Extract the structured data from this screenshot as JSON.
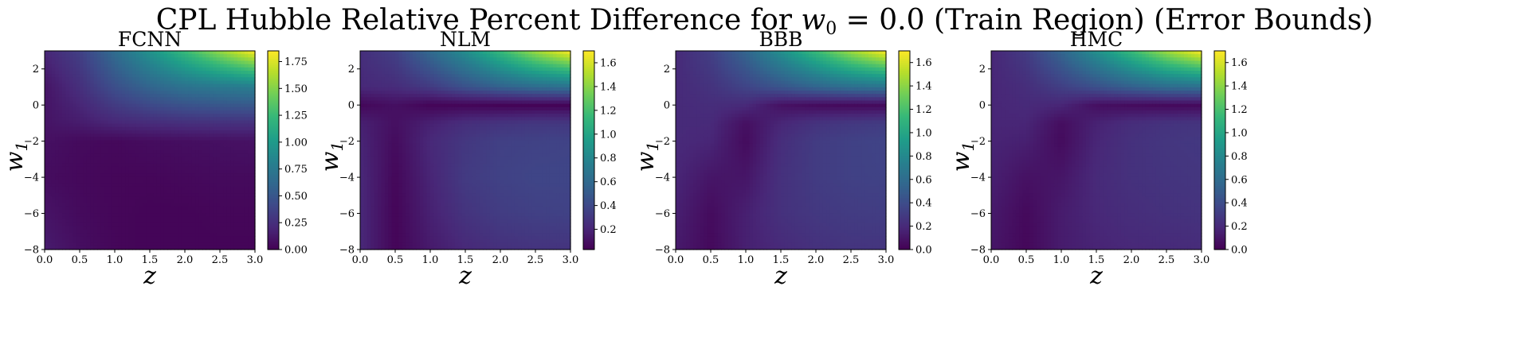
{
  "figure": {
    "title_prefix": "CPL Hubble Relative Percent Difference for ",
    "title_var": "w",
    "title_var_sub": "0",
    "title_suffix": " = 0.0 (Train Region) (Error Bounds)"
  },
  "colormap": "viridis",
  "colors": {
    "viridis_stops": [
      "#440154",
      "#482878",
      "#3e4989",
      "#31688e",
      "#26828e",
      "#1f9e89",
      "#35b779",
      "#6ece58",
      "#b5de2b",
      "#fde725"
    ]
  },
  "chart_data": [
    {
      "type": "heatmap",
      "title": "FCNN",
      "xlabel": "z",
      "ylabel": "w",
      "ylabel_sub": "1",
      "xlim": [
        0.0,
        3.0
      ],
      "ylim": [
        -8,
        3
      ],
      "xticks": [
        "0.0",
        "0.5",
        "1.0",
        "1.5",
        "2.0",
        "2.5",
        "3.0"
      ],
      "yticks": [
        "2",
        "0",
        "−2",
        "−4",
        "−6",
        "−8"
      ],
      "colorbar_range": [
        0.0,
        1.85
      ],
      "colorbar_ticks": [
        "0.00",
        "0.25",
        "0.50",
        "0.75",
        "1.00",
        "1.25",
        "1.50",
        "1.75"
      ],
      "grid": {
        "z": [
          0.0,
          0.5,
          1.0,
          1.5,
          2.0,
          2.5,
          3.0
        ],
        "w1": [
          3,
          1,
          -1,
          -2,
          -4,
          -6,
          -8
        ]
      },
      "values": [
        [
          0.2,
          0.35,
          0.65,
          0.95,
          1.25,
          1.55,
          1.85
        ],
        [
          0.1,
          0.25,
          0.45,
          0.6,
          0.7,
          0.75,
          0.78
        ],
        [
          0.1,
          0.14,
          0.2,
          0.23,
          0.25,
          0.26,
          0.26
        ],
        [
          0.08,
          0.05,
          0.04,
          0.06,
          0.07,
          0.08,
          0.09
        ],
        [
          0.06,
          0.04,
          0.03,
          0.03,
          0.04,
          0.05,
          0.05
        ],
        [
          0.1,
          0.05,
          0.03,
          0.02,
          0.02,
          0.03,
          0.03
        ],
        [
          0.14,
          0.07,
          0.03,
          0.02,
          0.02,
          0.02,
          0.02
        ]
      ]
    },
    {
      "type": "heatmap",
      "title": "NLM",
      "xlabel": "z",
      "ylabel": "w",
      "ylabel_sub": "1",
      "xlim": [
        0.0,
        3.0
      ],
      "ylim": [
        -8,
        3
      ],
      "xticks": [
        "0.0",
        "0.5",
        "1.0",
        "1.5",
        "2.0",
        "2.5",
        "3.0"
      ],
      "yticks": [
        "2",
        "0",
        "−2",
        "−4",
        "−6",
        "−8"
      ],
      "colorbar_range": [
        0.03,
        1.7
      ],
      "colorbar_ticks": [
        "0.2",
        "0.4",
        "0.6",
        "0.8",
        "1.0",
        "1.2",
        "1.4",
        "1.6"
      ],
      "grid": {
        "z": [
          0.0,
          0.5,
          1.0,
          1.5,
          2.0,
          2.5,
          3.0
        ],
        "w1": [
          3,
          1,
          0,
          -1,
          -2,
          -4,
          -6,
          -8
        ]
      },
      "values": [
        [
          0.25,
          0.35,
          0.6,
          0.85,
          1.15,
          1.45,
          1.7
        ],
        [
          0.22,
          0.24,
          0.32,
          0.45,
          0.55,
          0.62,
          0.65
        ],
        [
          0.06,
          0.1,
          0.05,
          0.05,
          0.04,
          0.04,
          0.04
        ],
        [
          0.18,
          0.1,
          0.18,
          0.25,
          0.28,
          0.3,
          0.3
        ],
        [
          0.2,
          0.08,
          0.22,
          0.3,
          0.35,
          0.36,
          0.37
        ],
        [
          0.22,
          0.06,
          0.2,
          0.32,
          0.36,
          0.38,
          0.38
        ],
        [
          0.22,
          0.05,
          0.18,
          0.28,
          0.33,
          0.35,
          0.36
        ],
        [
          0.22,
          0.05,
          0.15,
          0.22,
          0.26,
          0.28,
          0.28
        ]
      ]
    },
    {
      "type": "heatmap",
      "title": "BBB",
      "xlabel": "z",
      "ylabel": "w",
      "ylabel_sub": "1",
      "xlim": [
        0.0,
        3.0
      ],
      "ylim": [
        -8,
        3
      ],
      "xticks": [
        "0.0",
        "0.5",
        "1.0",
        "1.5",
        "2.0",
        "2.5",
        "3.0"
      ],
      "yticks": [
        "2",
        "0",
        "−2",
        "−4",
        "−6",
        "−8"
      ],
      "colorbar_range": [
        0.0,
        1.7
      ],
      "colorbar_ticks": [
        "0.0",
        "0.2",
        "0.4",
        "0.6",
        "0.8",
        "1.0",
        "1.2",
        "1.4",
        "1.6"
      ],
      "grid": {
        "z": [
          0.0,
          0.5,
          1.0,
          1.5,
          2.0,
          2.5,
          3.0
        ],
        "w1": [
          3,
          1,
          0,
          -1,
          -2,
          -4,
          -6,
          -8
        ]
      },
      "values": [
        [
          0.2,
          0.32,
          0.55,
          0.85,
          1.15,
          1.45,
          1.7
        ],
        [
          0.2,
          0.25,
          0.35,
          0.45,
          0.55,
          0.62,
          0.65
        ],
        [
          0.2,
          0.22,
          0.2,
          0.08,
          0.05,
          0.04,
          0.04
        ],
        [
          0.2,
          0.2,
          0.07,
          0.18,
          0.25,
          0.28,
          0.3
        ],
        [
          0.2,
          0.18,
          0.05,
          0.22,
          0.3,
          0.33,
          0.35
        ],
        [
          0.18,
          0.1,
          0.1,
          0.24,
          0.3,
          0.33,
          0.34
        ],
        [
          0.15,
          0.05,
          0.15,
          0.24,
          0.28,
          0.3,
          0.31
        ],
        [
          0.12,
          0.04,
          0.15,
          0.2,
          0.24,
          0.26,
          0.26
        ]
      ]
    },
    {
      "type": "heatmap",
      "title": "HMC",
      "xlabel": "z",
      "ylabel": "w",
      "ylabel_sub": "1",
      "xlim": [
        0.0,
        3.0
      ],
      "ylim": [
        -8,
        3
      ],
      "xticks": [
        "0.0",
        "0.5",
        "1.0",
        "1.5",
        "2.0",
        "2.5",
        "3.0"
      ],
      "yticks": [
        "2",
        "0",
        "−2",
        "−4",
        "−6",
        "−8"
      ],
      "colorbar_range": [
        0.0,
        1.7
      ],
      "colorbar_ticks": [
        "0.0",
        "0.2",
        "0.4",
        "0.6",
        "0.8",
        "1.0",
        "1.2",
        "1.4",
        "1.6"
      ],
      "grid": {
        "z": [
          0.0,
          0.5,
          1.0,
          1.5,
          2.0,
          2.5,
          3.0
        ],
        "w1": [
          3,
          1,
          0,
          -1,
          -2,
          -4,
          -6,
          -8
        ]
      },
      "values": [
        [
          0.18,
          0.3,
          0.55,
          0.85,
          1.15,
          1.45,
          1.7
        ],
        [
          0.18,
          0.22,
          0.32,
          0.42,
          0.52,
          0.6,
          0.62
        ],
        [
          0.18,
          0.2,
          0.18,
          0.07,
          0.05,
          0.04,
          0.04
        ],
        [
          0.18,
          0.18,
          0.06,
          0.16,
          0.22,
          0.25,
          0.26
        ],
        [
          0.17,
          0.15,
          0.05,
          0.18,
          0.24,
          0.27,
          0.28
        ],
        [
          0.15,
          0.08,
          0.1,
          0.2,
          0.24,
          0.26,
          0.27
        ],
        [
          0.12,
          0.04,
          0.13,
          0.19,
          0.22,
          0.24,
          0.25
        ],
        [
          0.1,
          0.03,
          0.13,
          0.17,
          0.19,
          0.2,
          0.21
        ]
      ]
    }
  ]
}
